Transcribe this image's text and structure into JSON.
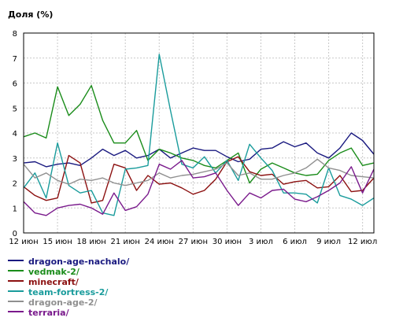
{
  "chart_data": {
    "type": "line",
    "ylabel": "Доля (%)",
    "ylim": [
      0,
      8
    ],
    "yticks": [
      0,
      1,
      2,
      3,
      4,
      5,
      6,
      7,
      8
    ],
    "grid": true,
    "x_start": "12 июн",
    "x_ticks": [
      {
        "i": 0,
        "label": "12 июн"
      },
      {
        "i": 3,
        "label": "15 июн"
      },
      {
        "i": 6,
        "label": "18 июн"
      },
      {
        "i": 9,
        "label": "21 июн"
      },
      {
        "i": 12,
        "label": "24 июн"
      },
      {
        "i": 15,
        "label": "27 июн"
      },
      {
        "i": 18,
        "label": "30 июн"
      },
      {
        "i": 21,
        "label": "3 июл"
      },
      {
        "i": 24,
        "label": "6 июл"
      },
      {
        "i": 27,
        "label": "9 июл"
      },
      {
        "i": 30,
        "label": "12 июл"
      }
    ],
    "legend_position": "bottom",
    "series": [
      {
        "name": "dragon-age-nachalo/",
        "color": "#1a1a80",
        "values": [
          2.8,
          2.85,
          2.65,
          2.75,
          2.8,
          2.7,
          3.0,
          3.35,
          3.1,
          3.3,
          3.0,
          3.1,
          3.35,
          3.0,
          3.2,
          3.4,
          3.3,
          3.3,
          3.05,
          2.85,
          2.95,
          3.35,
          3.4,
          3.65,
          3.45,
          3.6,
          3.2,
          3.0,
          3.4,
          4.0,
          3.7,
          3.15
        ]
      },
      {
        "name": "vedmak-2/",
        "color": "#1a8c1a",
        "values": [
          3.85,
          4.0,
          3.8,
          5.85,
          4.7,
          5.15,
          5.9,
          4.5,
          3.6,
          3.6,
          4.1,
          2.9,
          3.35,
          3.2,
          3.0,
          2.9,
          2.7,
          2.6,
          2.9,
          3.2,
          2.0,
          2.55,
          2.8,
          2.6,
          2.4,
          2.3,
          2.35,
          2.9,
          3.2,
          3.4,
          2.7,
          2.8
        ]
      },
      {
        "name": "minecraft/",
        "color": "#8c1010",
        "values": [
          1.85,
          1.5,
          1.3,
          1.4,
          3.1,
          2.8,
          1.2,
          1.3,
          2.75,
          2.6,
          1.7,
          2.3,
          1.95,
          2.0,
          1.8,
          1.55,
          1.7,
          2.15,
          2.85,
          3.05,
          2.45,
          2.3,
          2.35,
          1.95,
          2.05,
          2.1,
          1.8,
          1.85,
          2.3,
          1.65,
          1.7,
          2.2
        ]
      },
      {
        "name": "team-fortress-2/",
        "color": "#1a9c9c",
        "values": [
          1.8,
          2.4,
          1.4,
          3.6,
          1.9,
          1.6,
          1.7,
          0.8,
          0.7,
          2.55,
          2.6,
          2.7,
          7.15,
          4.9,
          2.75,
          2.6,
          3.05,
          2.4,
          2.9,
          2.1,
          3.55,
          3.0,
          2.5,
          1.6,
          1.6,
          1.55,
          1.2,
          2.6,
          1.5,
          1.35,
          1.1,
          1.4
        ]
      },
      {
        "name": "dragon-age-2/",
        "color": "#909090",
        "values": [
          2.75,
          2.2,
          2.4,
          2.1,
          1.95,
          2.15,
          2.1,
          2.2,
          2.0,
          1.9,
          2.0,
          2.1,
          2.4,
          2.2,
          2.3,
          2.35,
          2.45,
          2.55,
          2.8,
          2.3,
          2.4,
          2.15,
          2.15,
          2.3,
          2.4,
          2.6,
          2.95,
          2.6,
          2.5,
          2.3,
          2.25,
          2.2
        ]
      },
      {
        "name": "terraria/",
        "color": "#7a1a8c",
        "values": [
          1.25,
          0.8,
          0.7,
          1.0,
          1.1,
          1.15,
          1.0,
          0.75,
          1.6,
          0.9,
          1.05,
          1.55,
          2.75,
          2.55,
          2.9,
          2.2,
          2.25,
          2.4,
          1.7,
          1.1,
          1.6,
          1.4,
          1.7,
          1.75,
          1.35,
          1.25,
          1.45,
          1.7,
          2.0,
          2.65,
          1.6,
          2.55
        ]
      }
    ]
  }
}
